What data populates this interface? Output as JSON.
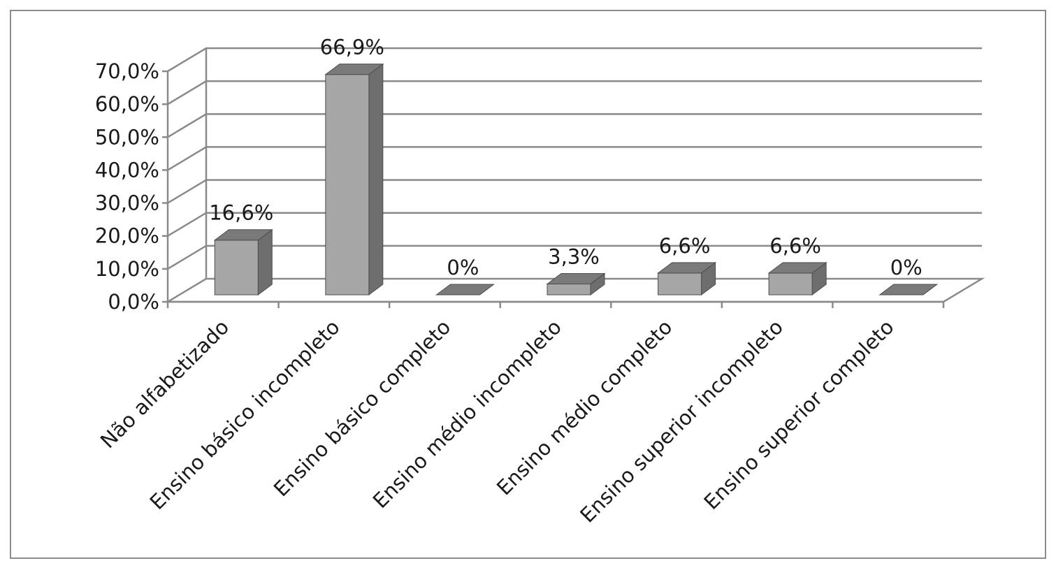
{
  "chart_data": {
    "type": "bar",
    "style": "3d-column",
    "title": "",
    "xlabel": "",
    "ylabel": "",
    "categories": [
      "Não alfabetizado",
      "Ensino básico incompleto",
      "Ensino básico completo",
      "Ensino médio incompleto",
      "Ensino médio completo",
      "Ensino superior incompleto",
      "Ensino superior completo"
    ],
    "values": [
      16.6,
      66.9,
      0,
      3.3,
      6.6,
      6.6,
      0
    ],
    "data_labels": [
      "16,6%",
      "66,9%",
      "0%",
      "3,3%",
      "6,6%",
      "6,6%",
      "0%"
    ],
    "ylim": [
      0,
      70
    ],
    "yticks": [
      "0,0%",
      "10,0%",
      "20,0%",
      "30,0%",
      "40,0%",
      "50,0%",
      "60,0%",
      "70,0%"
    ],
    "grid": true,
    "legend": "none",
    "colors": {
      "bar_front": "#a6a6a6",
      "bar_side": "#6e6e6e",
      "bar_top": "#7a7a7a",
      "grid": "#8a8a8a",
      "axis": "#8a8a8a",
      "frame": "#8c8c8c"
    }
  }
}
